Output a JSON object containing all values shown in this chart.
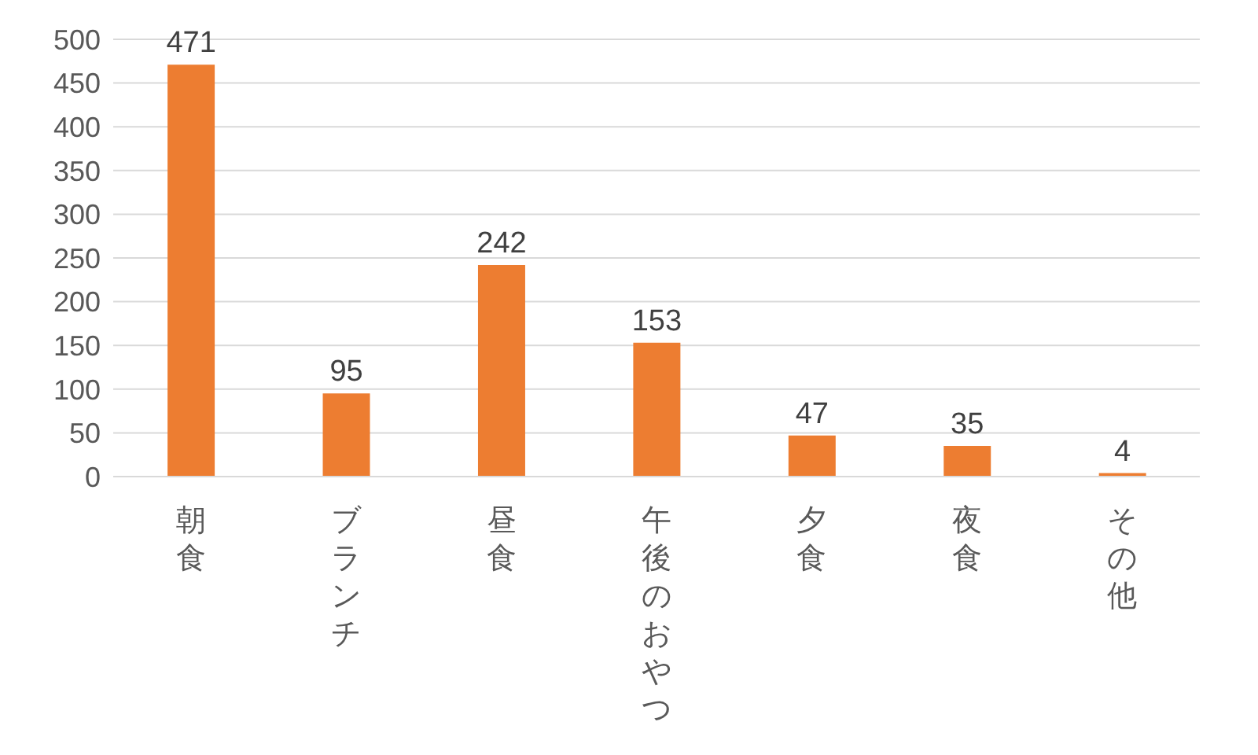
{
  "chart_data": {
    "type": "bar",
    "categories": [
      "朝食",
      "ブランチ",
      "昼食",
      "午後のおやつ",
      "夕食",
      "夜食",
      "その他"
    ],
    "values": [
      471,
      95,
      242,
      153,
      47,
      35,
      4
    ],
    "color": "#ed7d31",
    "ylim": [
      0,
      500
    ],
    "yticks": [
      0,
      50,
      100,
      150,
      200,
      250,
      300,
      350,
      400,
      450,
      500
    ],
    "grid": "y",
    "data_labels": true
  }
}
